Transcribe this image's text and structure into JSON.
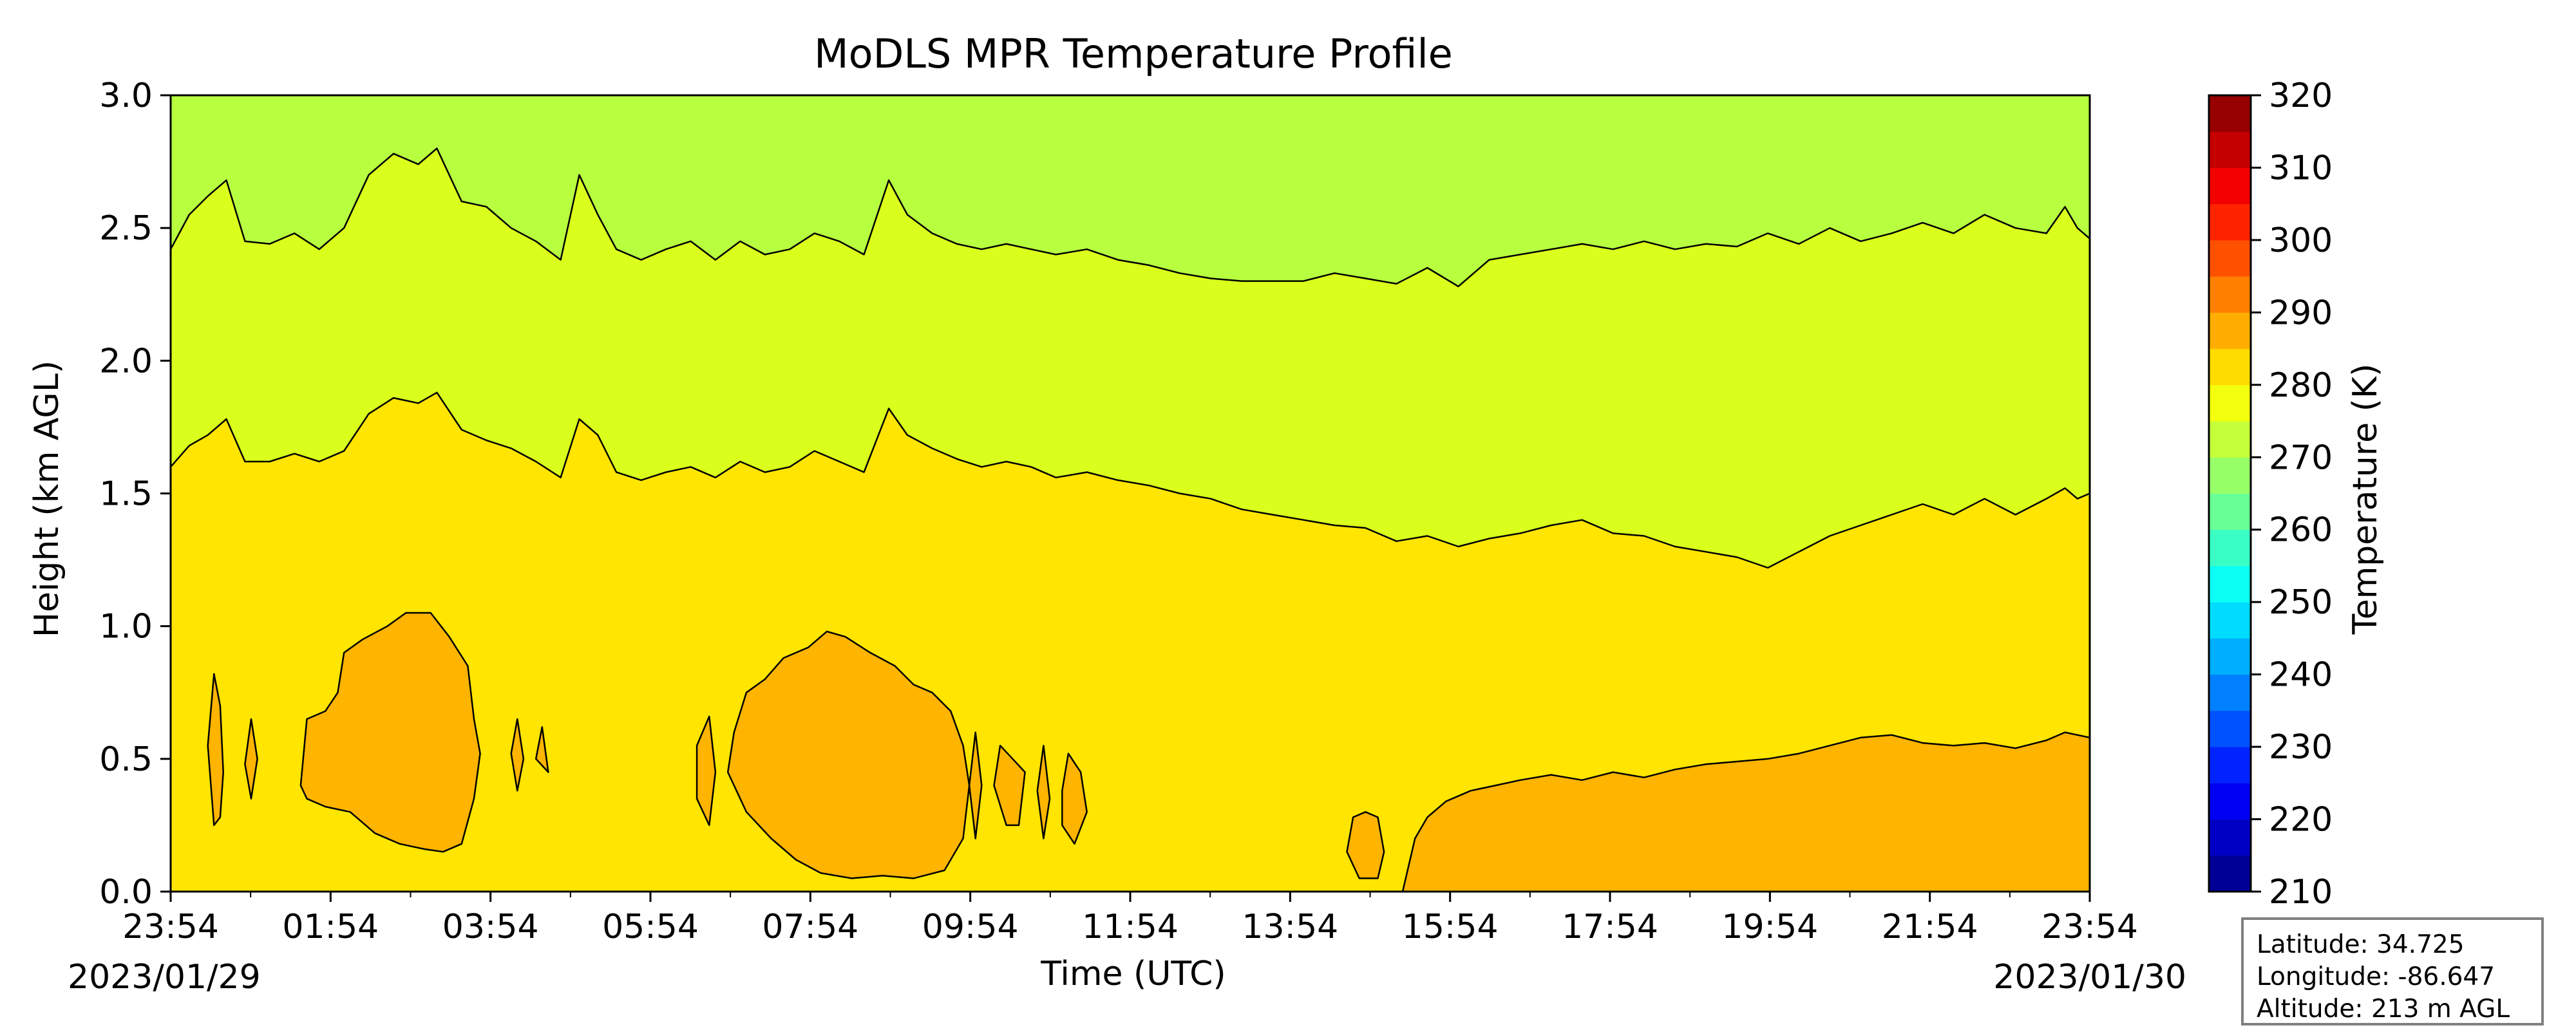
{
  "chart_data": {
    "type": "heatmap",
    "title": "MoDLS MPR Temperature Profile",
    "xlabel": "Time (UTC)",
    "ylabel": "Height (km AGL)",
    "x_ticks": [
      "23:54",
      "01:54",
      "03:54",
      "05:54",
      "07:54",
      "09:54",
      "11:54",
      "13:54",
      "15:54",
      "17:54",
      "19:54",
      "21:54",
      "23:54"
    ],
    "x_start_date": "2023/01/29",
    "x_end_date": "2023/01/30",
    "ylim": [
      0,
      3.0
    ],
    "y_ticks": [
      "0.0",
      "0.5",
      "1.0",
      "1.5",
      "2.0",
      "2.5",
      "3.0"
    ],
    "colorbar": {
      "label": "Temperature (K)",
      "range": [
        210,
        320
      ],
      "step": 5,
      "ticks": [
        "210",
        "220",
        "230",
        "240",
        "250",
        "260",
        "270",
        "280",
        "290",
        "300",
        "310",
        "320"
      ],
      "colormap": "jet"
    },
    "bands": [
      {
        "range_K": [
          285,
          290
        ],
        "color": "#ffb400"
      },
      {
        "range_K": [
          280,
          285
        ],
        "color": "#ffe500"
      },
      {
        "range_K": [
          275,
          280
        ],
        "color": "#dbff1c"
      },
      {
        "range_K": [
          270,
          275
        ],
        "color": "#b8ff40"
      }
    ],
    "contours": [
      {
        "level_K": 275,
        "height_km": [
          [
            0.0,
            2.42
          ],
          [
            0.3,
            2.55
          ],
          [
            0.6,
            2.62
          ],
          [
            0.9,
            2.68
          ],
          [
            1.2,
            2.45
          ],
          [
            1.6,
            2.44
          ],
          [
            2.0,
            2.48
          ],
          [
            2.4,
            2.42
          ],
          [
            2.8,
            2.5
          ],
          [
            3.2,
            2.7
          ],
          [
            3.6,
            2.78
          ],
          [
            4.0,
            2.74
          ],
          [
            4.3,
            2.8
          ],
          [
            4.7,
            2.6
          ],
          [
            5.1,
            2.58
          ],
          [
            5.5,
            2.5
          ],
          [
            5.9,
            2.45
          ],
          [
            6.3,
            2.38
          ],
          [
            6.6,
            2.7
          ],
          [
            6.9,
            2.55
          ],
          [
            7.2,
            2.42
          ],
          [
            7.6,
            2.38
          ],
          [
            8.0,
            2.42
          ],
          [
            8.4,
            2.45
          ],
          [
            8.8,
            2.38
          ],
          [
            9.2,
            2.45
          ],
          [
            9.6,
            2.4
          ],
          [
            10.0,
            2.42
          ],
          [
            10.4,
            2.48
          ],
          [
            10.8,
            2.45
          ],
          [
            11.2,
            2.4
          ],
          [
            11.6,
            2.68
          ],
          [
            11.9,
            2.55
          ],
          [
            12.3,
            2.48
          ],
          [
            12.7,
            2.44
          ],
          [
            13.1,
            2.42
          ],
          [
            13.5,
            2.44
          ],
          [
            13.9,
            2.42
          ],
          [
            14.3,
            2.4
          ],
          [
            14.8,
            2.42
          ],
          [
            15.3,
            2.38
          ],
          [
            15.8,
            2.36
          ],
          [
            16.3,
            2.33
          ],
          [
            16.8,
            2.31
          ],
          [
            17.3,
            2.3
          ],
          [
            17.8,
            2.3
          ],
          [
            18.3,
            2.3
          ],
          [
            18.8,
            2.33
          ],
          [
            19.3,
            2.31
          ],
          [
            19.8,
            2.29
          ],
          [
            20.3,
            2.35
          ],
          [
            20.8,
            2.28
          ],
          [
            21.3,
            2.38
          ],
          [
            21.8,
            2.4
          ],
          [
            22.3,
            2.42
          ],
          [
            22.8,
            2.44
          ],
          [
            23.3,
            2.42
          ],
          [
            23.8,
            2.45
          ],
          [
            24.3,
            2.42
          ],
          [
            24.8,
            2.44
          ],
          [
            25.3,
            2.43
          ],
          [
            25.8,
            2.48
          ],
          [
            26.3,
            2.44
          ],
          [
            26.8,
            2.5
          ],
          [
            27.3,
            2.45
          ],
          [
            27.8,
            2.48
          ],
          [
            28.3,
            2.52
          ],
          [
            28.8,
            2.48
          ],
          [
            29.3,
            2.55
          ],
          [
            29.8,
            2.5
          ],
          [
            30.3,
            2.48
          ],
          [
            30.6,
            2.58
          ],
          [
            30.8,
            2.5
          ],
          [
            31.0,
            2.46
          ]
        ]
      },
      {
        "level_K": 280,
        "height_km": [
          [
            0.0,
            1.6
          ],
          [
            0.3,
            1.68
          ],
          [
            0.6,
            1.72
          ],
          [
            0.9,
            1.78
          ],
          [
            1.2,
            1.62
          ],
          [
            1.6,
            1.62
          ],
          [
            2.0,
            1.65
          ],
          [
            2.4,
            1.62
          ],
          [
            2.8,
            1.66
          ],
          [
            3.2,
            1.8
          ],
          [
            3.6,
            1.86
          ],
          [
            4.0,
            1.84
          ],
          [
            4.3,
            1.88
          ],
          [
            4.7,
            1.74
          ],
          [
            5.1,
            1.7
          ],
          [
            5.5,
            1.67
          ],
          [
            5.9,
            1.62
          ],
          [
            6.3,
            1.56
          ],
          [
            6.6,
            1.78
          ],
          [
            6.9,
            1.72
          ],
          [
            7.2,
            1.58
          ],
          [
            7.6,
            1.55
          ],
          [
            8.0,
            1.58
          ],
          [
            8.4,
            1.6
          ],
          [
            8.8,
            1.56
          ],
          [
            9.2,
            1.62
          ],
          [
            9.6,
            1.58
          ],
          [
            10.0,
            1.6
          ],
          [
            10.4,
            1.66
          ],
          [
            10.8,
            1.62
          ],
          [
            11.2,
            1.58
          ],
          [
            11.6,
            1.82
          ],
          [
            11.9,
            1.72
          ],
          [
            12.3,
            1.67
          ],
          [
            12.7,
            1.63
          ],
          [
            13.1,
            1.6
          ],
          [
            13.5,
            1.62
          ],
          [
            13.9,
            1.6
          ],
          [
            14.3,
            1.56
          ],
          [
            14.8,
            1.58
          ],
          [
            15.3,
            1.55
          ],
          [
            15.8,
            1.53
          ],
          [
            16.3,
            1.5
          ],
          [
            16.8,
            1.48
          ],
          [
            17.3,
            1.44
          ],
          [
            17.8,
            1.42
          ],
          [
            18.3,
            1.4
          ],
          [
            18.8,
            1.38
          ],
          [
            19.3,
            1.37
          ],
          [
            19.8,
            1.32
          ],
          [
            20.3,
            1.34
          ],
          [
            20.8,
            1.3
          ],
          [
            21.3,
            1.33
          ],
          [
            21.8,
            1.35
          ],
          [
            22.3,
            1.38
          ],
          [
            22.8,
            1.4
          ],
          [
            23.3,
            1.35
          ],
          [
            23.8,
            1.34
          ],
          [
            24.3,
            1.3
          ],
          [
            24.8,
            1.28
          ],
          [
            25.3,
            1.26
          ],
          [
            25.8,
            1.22
          ],
          [
            26.3,
            1.28
          ],
          [
            26.8,
            1.34
          ],
          [
            27.3,
            1.38
          ],
          [
            27.8,
            1.42
          ],
          [
            28.3,
            1.46
          ],
          [
            28.8,
            1.42
          ],
          [
            29.3,
            1.48
          ],
          [
            29.8,
            1.42
          ],
          [
            30.3,
            1.48
          ],
          [
            30.6,
            1.52
          ],
          [
            30.8,
            1.48
          ],
          [
            31.0,
            1.5
          ]
        ]
      },
      {
        "level_K": 285,
        "regions": [
          [
            [
              2.1,
              0.4
            ],
            [
              2.2,
              0.65
            ],
            [
              2.5,
              0.68
            ],
            [
              2.7,
              0.75
            ],
            [
              2.8,
              0.9
            ],
            [
              3.1,
              0.95
            ],
            [
              3.5,
              1.0
            ],
            [
              3.8,
              1.05
            ],
            [
              4.2,
              1.05
            ],
            [
              4.5,
              0.96
            ],
            [
              4.8,
              0.85
            ],
            [
              4.9,
              0.65
            ],
            [
              5.0,
              0.52
            ],
            [
              4.9,
              0.35
            ],
            [
              4.7,
              0.18
            ],
            [
              4.4,
              0.15
            ],
            [
              4.1,
              0.16
            ],
            [
              3.7,
              0.18
            ],
            [
              3.3,
              0.22
            ],
            [
              2.9,
              0.3
            ],
            [
              2.5,
              0.32
            ],
            [
              2.2,
              0.35
            ]
          ],
          [
            [
              9.1,
              0.6
            ],
            [
              9.3,
              0.75
            ],
            [
              9.6,
              0.8
            ],
            [
              9.9,
              0.88
            ],
            [
              10.3,
              0.92
            ],
            [
              10.6,
              0.98
            ],
            [
              10.9,
              0.96
            ],
            [
              11.3,
              0.9
            ],
            [
              11.7,
              0.85
            ],
            [
              12.0,
              0.78
            ],
            [
              12.3,
              0.75
            ],
            [
              12.6,
              0.68
            ],
            [
              12.8,
              0.55
            ],
            [
              12.9,
              0.4
            ],
            [
              12.8,
              0.2
            ],
            [
              12.5,
              0.08
            ],
            [
              12.0,
              0.05
            ],
            [
              11.5,
              0.06
            ],
            [
              11.0,
              0.05
            ],
            [
              10.5,
              0.07
            ],
            [
              10.1,
              0.12
            ],
            [
              9.7,
              0.2
            ],
            [
              9.3,
              0.3
            ],
            [
              9.0,
              0.45
            ]
          ],
          [
            [
              19.9,
              0.0
            ],
            [
              20.1,
              0.2
            ],
            [
              20.3,
              0.28
            ],
            [
              20.6,
              0.34
            ],
            [
              21.0,
              0.38
            ],
            [
              21.4,
              0.4
            ],
            [
              21.8,
              0.42
            ],
            [
              22.3,
              0.44
            ],
            [
              22.8,
              0.42
            ],
            [
              23.3,
              0.45
            ],
            [
              23.8,
              0.43
            ],
            [
              24.3,
              0.46
            ],
            [
              24.8,
              0.48
            ],
            [
              25.3,
              0.49
            ],
            [
              25.8,
              0.5
            ],
            [
              26.3,
              0.52
            ],
            [
              26.8,
              0.55
            ],
            [
              27.3,
              0.58
            ],
            [
              27.8,
              0.59
            ],
            [
              28.3,
              0.56
            ],
            [
              28.8,
              0.55
            ],
            [
              29.3,
              0.56
            ],
            [
              29.8,
              0.54
            ],
            [
              30.3,
              0.57
            ],
            [
              30.6,
              0.6
            ],
            [
              31.0,
              0.58
            ],
            [
              31.0,
              0.0
            ]
          ],
          [
            [
              0.6,
              0.55
            ],
            [
              0.7,
              0.82
            ],
            [
              0.8,
              0.7
            ],
            [
              0.85,
              0.45
            ],
            [
              0.8,
              0.28
            ],
            [
              0.7,
              0.25
            ]
          ],
          [
            [
              1.2,
              0.48
            ],
            [
              1.3,
              0.65
            ],
            [
              1.4,
              0.5
            ],
            [
              1.3,
              0.35
            ]
          ],
          [
            [
              5.5,
              0.52
            ],
            [
              5.6,
              0.65
            ],
            [
              5.7,
              0.5
            ],
            [
              5.6,
              0.38
            ]
          ],
          [
            [
              5.9,
              0.5
            ],
            [
              6.0,
              0.62
            ],
            [
              6.1,
              0.45
            ]
          ],
          [
            [
              8.5,
              0.55
            ],
            [
              8.7,
              0.66
            ],
            [
              8.8,
              0.45
            ],
            [
              8.7,
              0.25
            ],
            [
              8.5,
              0.35
            ]
          ],
          [
            [
              12.9,
              0.4
            ],
            [
              13.0,
              0.6
            ],
            [
              13.1,
              0.4
            ],
            [
              13.0,
              0.2
            ]
          ],
          [
            [
              13.3,
              0.4
            ],
            [
              13.4,
              0.55
            ],
            [
              13.6,
              0.5
            ],
            [
              13.8,
              0.45
            ],
            [
              13.7,
              0.25
            ],
            [
              13.5,
              0.25
            ]
          ],
          [
            [
              14.0,
              0.38
            ],
            [
              14.1,
              0.55
            ],
            [
              14.2,
              0.35
            ],
            [
              14.1,
              0.2
            ]
          ],
          [
            [
              14.4,
              0.38
            ],
            [
              14.5,
              0.52
            ],
            [
              14.7,
              0.45
            ],
            [
              14.8,
              0.3
            ],
            [
              14.6,
              0.18
            ],
            [
              14.4,
              0.25
            ]
          ],
          [
            [
              19.0,
              0.15
            ],
            [
              19.1,
              0.28
            ],
            [
              19.3,
              0.3
            ],
            [
              19.5,
              0.28
            ],
            [
              19.6,
              0.15
            ],
            [
              19.5,
              0.05
            ],
            [
              19.2,
              0.05
            ]
          ]
        ]
      }
    ]
  },
  "info": {
    "latitude": "Latitude: 34.725",
    "longitude": "Longitude: -86.647",
    "altitude": "Altitude: 213 m AGL"
  }
}
